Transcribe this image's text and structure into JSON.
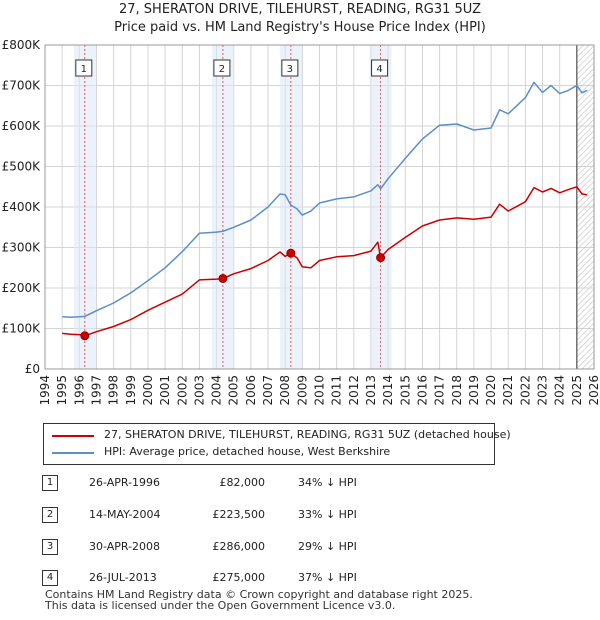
{
  "chart_data": {
    "type": "line",
    "title": "27, SHERATON DRIVE, TILEHURST, READING, RG31 5UZ",
    "subtitle": "Price paid vs. HM Land Registry's House Price Index (HPI)",
    "xlim": [
      1994,
      2026
    ],
    "ylim": [
      0,
      800000
    ],
    "x_ticks": [
      "1994",
      "1995",
      "1996",
      "1997",
      "1998",
      "1999",
      "2000",
      "2001",
      "2002",
      "2003",
      "2004",
      "2005",
      "2006",
      "2007",
      "2008",
      "2009",
      "2010",
      "2011",
      "2012",
      "2013",
      "2014",
      "2015",
      "2016",
      "2017",
      "2018",
      "2019",
      "2020",
      "2021",
      "2022",
      "2023",
      "2024",
      "2025",
      "2026"
    ],
    "y_ticks": [
      {
        "value": 0,
        "label": "£0"
      },
      {
        "value": 100000,
        "label": "£100K"
      },
      {
        "value": 200000,
        "label": "£200K"
      },
      {
        "value": 300000,
        "label": "£300K"
      },
      {
        "value": 400000,
        "label": "£400K"
      },
      {
        "value": 500000,
        "label": "£500K"
      },
      {
        "value": 600000,
        "label": "£600K"
      },
      {
        "value": 700000,
        "label": "£700K"
      },
      {
        "value": 800000,
        "label": "£800K"
      }
    ],
    "series": [
      {
        "name": "27, SHERATON DRIVE, TILEHURST, READING, RG31 5UZ (detached house)",
        "color": "#cc0000",
        "x": [
          1995.0,
          1995.5,
          1996.0,
          1996.32,
          1997.0,
          1998.0,
          1999.0,
          2000.0,
          2001.0,
          2002.0,
          2003.0,
          2004.0,
          2004.37,
          2005.0,
          2006.0,
          2007.0,
          2007.7,
          2008.0,
          2008.33,
          2008.7,
          2009.0,
          2009.5,
          2010.0,
          2011.0,
          2012.0,
          2013.0,
          2013.4,
          2013.56,
          2014.0,
          2015.0,
          2016.0,
          2017.0,
          2018.0,
          2019.0,
          2020.0,
          2020.5,
          2021.0,
          2022.0,
          2022.5,
          2023.0,
          2023.5,
          2024.0,
          2024.5,
          2025.0,
          2025.3,
          2025.6
        ],
        "values": [
          88000,
          86000,
          85000,
          82000,
          92000,
          105000,
          122000,
          145000,
          165000,
          185000,
          220000,
          222000,
          223500,
          235000,
          248000,
          268000,
          289000,
          278000,
          286000,
          274000,
          252000,
          250000,
          268000,
          277000,
          280000,
          291000,
          313000,
          275000,
          295000,
          325000,
          353000,
          368000,
          373000,
          370000,
          375000,
          407000,
          390000,
          413000,
          448000,
          437000,
          446000,
          435000,
          443000,
          450000,
          432000,
          430000
        ]
      },
      {
        "name": "HPI: Average price, detached house, West Berkshire",
        "color": "#5b8fc9",
        "x": [
          1995.0,
          1995.5,
          1996.0,
          1996.32,
          1997.0,
          1998.0,
          1999.0,
          2000.0,
          2001.0,
          2002.0,
          2003.0,
          2004.0,
          2004.37,
          2005.0,
          2006.0,
          2007.0,
          2007.7,
          2008.0,
          2008.33,
          2008.7,
          2009.0,
          2009.5,
          2010.0,
          2011.0,
          2012.0,
          2013.0,
          2013.4,
          2013.56,
          2014.0,
          2015.0,
          2016.0,
          2017.0,
          2018.0,
          2019.0,
          2020.0,
          2020.5,
          2021.0,
          2022.0,
          2022.5,
          2023.0,
          2023.5,
          2024.0,
          2024.5,
          2025.0,
          2025.3,
          2025.6
        ],
        "values": [
          129000,
          128000,
          129000,
          130000,
          144000,
          163000,
          188000,
          218000,
          250000,
          290000,
          335000,
          338000,
          340000,
          350000,
          368000,
          400000,
          432000,
          430000,
          405000,
          395000,
          380000,
          390000,
          410000,
          420000,
          425000,
          440000,
          455000,
          445000,
          470000,
          520000,
          568000,
          602000,
          605000,
          590000,
          595000,
          640000,
          630000,
          670000,
          708000,
          683000,
          700000,
          680000,
          688000,
          700000,
          682000,
          688000
        ]
      }
    ],
    "sales": [
      {
        "id": "1",
        "x": 1996.32,
        "value": 82000
      },
      {
        "id": "2",
        "x": 2004.37,
        "value": 223500
      },
      {
        "id": "3",
        "x": 2008.33,
        "value": 286000
      },
      {
        "id": "4",
        "x": 2013.56,
        "value": 275000
      }
    ],
    "projection_start": 2025.0
  },
  "header": {
    "title": "27, SHERATON DRIVE, TILEHURST, READING, RG31 5UZ",
    "subtitle": "Price paid vs. HM Land Registry's House Price Index (HPI)"
  },
  "legend": {
    "property": "27, SHERATON DRIVE, TILEHURST, READING, RG31 5UZ (detached house)",
    "hpi": "HPI: Average price, detached house, West Berkshire",
    "property_color": "#cc0000",
    "hpi_color": "#5b8fc9"
  },
  "table": [
    {
      "num": "1",
      "date": "26-APR-1996",
      "price": "£82,000",
      "pct": "34% ↓ HPI"
    },
    {
      "num": "2",
      "date": "14-MAY-2004",
      "price": "£223,500",
      "pct": "33% ↓ HPI"
    },
    {
      "num": "3",
      "date": "30-APR-2008",
      "price": "£286,000",
      "pct": "29% ↓ HPI"
    },
    {
      "num": "4",
      "date": "26-JUL-2013",
      "price": "£275,000",
      "pct": "37% ↓ HPI"
    }
  ],
  "footer": {
    "line1": "Contains HM Land Registry data © Crown copyright and database right 2025.",
    "line2": "This data is licensed under the Open Government Licence v3.0."
  }
}
